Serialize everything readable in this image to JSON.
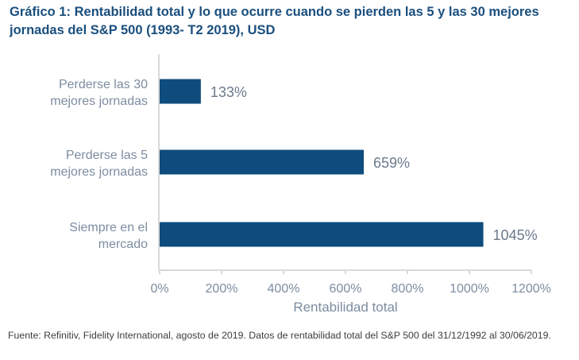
{
  "title": "Gráfico 1: Rentabilidad total y lo que ocurre cuando se pierden las 5 y las 30 mejores jornadas del S&P 500 (1993- T2 2019), USD",
  "footnote": "Fuente: Refinitiv, Fidelity International, agosto de 2019. Datos de rentabilidad total del S&P 500 del 31/12/1992 al 30/06/2019.",
  "colors": {
    "bar": "#0e4c7d",
    "title": "#1a4f7e",
    "axis": "#d9d9d9"
  },
  "chart_data": {
    "type": "bar",
    "orientation": "horizontal",
    "title": "Gráfico 1: Rentabilidad total y lo que ocurre cuando se pierden las 5 y las 30 mejores jornadas del S&P 500 (1993- T2 2019), USD",
    "categories": [
      [
        "Perderse las 30",
        "mejores jornadas"
      ],
      [
        "Perderse las 5",
        "mejores jornadas"
      ],
      [
        "Siempre en el",
        "mercado"
      ]
    ],
    "values": [
      133,
      659,
      1045
    ],
    "data_labels": [
      "133%",
      "659%",
      "1045%"
    ],
    "xlabel": "Rentabilidad total",
    "ylabel": "",
    "xlim": [
      0,
      1200
    ],
    "xticks": [
      0,
      200,
      400,
      600,
      800,
      1000,
      1200
    ],
    "xtick_labels": [
      "0%",
      "200%",
      "400%",
      "600%",
      "800%",
      "1000%",
      "1200%"
    ],
    "grid": false,
    "legend": "none"
  }
}
